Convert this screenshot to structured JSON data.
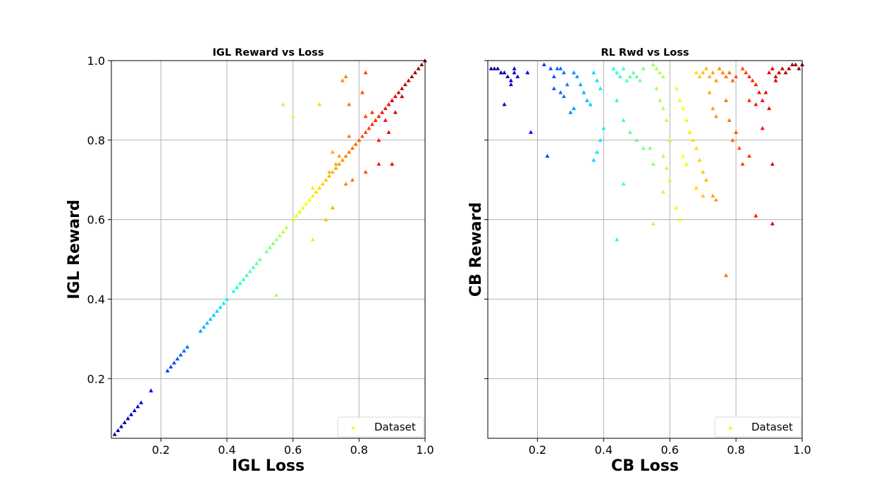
{
  "chart_data": [
    {
      "type": "scatter",
      "title": "IGL Reward vs Loss",
      "xlabel": "IGL Loss",
      "ylabel": "IGL Reward",
      "xlim": [
        0.05,
        1.0
      ],
      "ylim": [
        0.05,
        1.0
      ],
      "xticks": [
        "0.2",
        "0.4",
        "0.6",
        "0.8",
        "1.0"
      ],
      "yticks": [
        "0.2",
        "0.4",
        "0.6",
        "0.8",
        "1.0"
      ],
      "grid": true,
      "marker": "triangle",
      "colormap": "jet",
      "legend": {
        "label": "Dataset",
        "position": "lower-right"
      },
      "series": [
        {
          "name": "Dataset",
          "points": [
            [
              0.06,
              0.06
            ],
            [
              0.07,
              0.07
            ],
            [
              0.08,
              0.08
            ],
            [
              0.09,
              0.09
            ],
            [
              0.1,
              0.1
            ],
            [
              0.11,
              0.11
            ],
            [
              0.12,
              0.12
            ],
            [
              0.13,
              0.13
            ],
            [
              0.14,
              0.14
            ],
            [
              0.17,
              0.17
            ],
            [
              0.22,
              0.22
            ],
            [
              0.23,
              0.23
            ],
            [
              0.24,
              0.24
            ],
            [
              0.25,
              0.25
            ],
            [
              0.26,
              0.26
            ],
            [
              0.27,
              0.27
            ],
            [
              0.28,
              0.28
            ],
            [
              0.32,
              0.32
            ],
            [
              0.33,
              0.33
            ],
            [
              0.34,
              0.34
            ],
            [
              0.35,
              0.35
            ],
            [
              0.36,
              0.36
            ],
            [
              0.37,
              0.37
            ],
            [
              0.38,
              0.38
            ],
            [
              0.39,
              0.39
            ],
            [
              0.4,
              0.4
            ],
            [
              0.42,
              0.42
            ],
            [
              0.43,
              0.43
            ],
            [
              0.44,
              0.44
            ],
            [
              0.45,
              0.45
            ],
            [
              0.46,
              0.46
            ],
            [
              0.47,
              0.47
            ],
            [
              0.48,
              0.48
            ],
            [
              0.49,
              0.49
            ],
            [
              0.5,
              0.5
            ],
            [
              0.52,
              0.52
            ],
            [
              0.53,
              0.53
            ],
            [
              0.54,
              0.54
            ],
            [
              0.55,
              0.55
            ],
            [
              0.56,
              0.56
            ],
            [
              0.57,
              0.57
            ],
            [
              0.58,
              0.58
            ],
            [
              0.55,
              0.41
            ],
            [
              0.54,
              0.54
            ],
            [
              0.6,
              0.6
            ],
            [
              0.61,
              0.61
            ],
            [
              0.62,
              0.62
            ],
            [
              0.63,
              0.63
            ],
            [
              0.64,
              0.64
            ],
            [
              0.65,
              0.65
            ],
            [
              0.66,
              0.66
            ],
            [
              0.67,
              0.67
            ],
            [
              0.68,
              0.68
            ],
            [
              0.69,
              0.69
            ],
            [
              0.7,
              0.7
            ],
            [
              0.71,
              0.71
            ],
            [
              0.72,
              0.72
            ],
            [
              0.73,
              0.73
            ],
            [
              0.74,
              0.74
            ],
            [
              0.75,
              0.75
            ],
            [
              0.76,
              0.76
            ],
            [
              0.77,
              0.77
            ],
            [
              0.78,
              0.78
            ],
            [
              0.79,
              0.79
            ],
            [
              0.8,
              0.8
            ],
            [
              0.81,
              0.81
            ],
            [
              0.82,
              0.82
            ],
            [
              0.83,
              0.83
            ],
            [
              0.84,
              0.84
            ],
            [
              0.85,
              0.85
            ],
            [
              0.86,
              0.86
            ],
            [
              0.87,
              0.87
            ],
            [
              0.88,
              0.88
            ],
            [
              0.89,
              0.89
            ],
            [
              0.9,
              0.9
            ],
            [
              0.91,
              0.91
            ],
            [
              0.92,
              0.92
            ],
            [
              0.93,
              0.93
            ],
            [
              0.94,
              0.94
            ],
            [
              0.95,
              0.95
            ],
            [
              0.96,
              0.96
            ],
            [
              0.97,
              0.97
            ],
            [
              0.98,
              0.98
            ],
            [
              0.99,
              0.99
            ],
            [
              1.0,
              1.0
            ],
            [
              0.57,
              0.89
            ],
            [
              0.6,
              0.86
            ],
            [
              0.68,
              0.89
            ],
            [
              0.76,
              0.96
            ],
            [
              0.77,
              0.89
            ],
            [
              0.82,
              0.97
            ],
            [
              0.75,
              0.95
            ],
            [
              0.81,
              0.92
            ],
            [
              0.82,
              0.86
            ],
            [
              0.66,
              0.55
            ],
            [
              0.7,
              0.6
            ],
            [
              0.72,
              0.63
            ],
            [
              0.66,
              0.68
            ],
            [
              0.71,
              0.72
            ],
            [
              0.73,
              0.74
            ],
            [
              0.76,
              0.69
            ],
            [
              0.78,
              0.7
            ],
            [
              0.82,
              0.72
            ],
            [
              0.86,
              0.74
            ],
            [
              0.9,
              0.74
            ],
            [
              0.74,
              0.76
            ],
            [
              0.77,
              0.81
            ],
            [
              0.86,
              0.8
            ],
            [
              0.88,
              0.85
            ],
            [
              0.89,
              0.82
            ],
            [
              0.84,
              0.87
            ],
            [
              0.91,
              0.87
            ],
            [
              0.93,
              0.91
            ],
            [
              0.9,
              0.9
            ],
            [
              0.62,
              0.62
            ],
            [
              0.67,
              0.67
            ],
            [
              0.72,
              0.77
            ]
          ]
        }
      ]
    },
    {
      "type": "scatter",
      "title": "RL Rwd vs Loss",
      "xlabel": "CB Loss",
      "ylabel": "CB Reward",
      "xlim": [
        0.05,
        1.0
      ],
      "ylim": [
        0.05,
        1.0
      ],
      "xticks": [
        "0.2",
        "0.4",
        "0.6",
        "0.8",
        "1.0"
      ],
      "yticks": [],
      "grid": true,
      "marker": "triangle",
      "colormap": "jet",
      "legend": {
        "label": "Dataset",
        "position": "lower-right"
      },
      "series": [
        {
          "name": "Dataset",
          "points": [
            [
              0.06,
              0.98
            ],
            [
              0.07,
              0.98
            ],
            [
              0.08,
              0.98
            ],
            [
              0.09,
              0.97
            ],
            [
              0.1,
              0.97
            ],
            [
              0.11,
              0.96
            ],
            [
              0.12,
              0.95
            ],
            [
              0.13,
              0.97
            ],
            [
              0.14,
              0.96
            ],
            [
              0.12,
              0.94
            ],
            [
              0.1,
              0.89
            ],
            [
              0.13,
              0.98
            ],
            [
              0.17,
              0.97
            ],
            [
              0.18,
              0.82
            ],
            [
              0.22,
              0.99
            ],
            [
              0.24,
              0.98
            ],
            [
              0.25,
              0.96
            ],
            [
              0.26,
              0.98
            ],
            [
              0.27,
              0.98
            ],
            [
              0.28,
              0.97
            ],
            [
              0.29,
              0.94
            ],
            [
              0.27,
              0.92
            ],
            [
              0.25,
              0.93
            ],
            [
              0.23,
              0.76
            ],
            [
              0.28,
              0.91
            ],
            [
              0.31,
              0.97
            ],
            [
              0.32,
              0.96
            ],
            [
              0.33,
              0.94
            ],
            [
              0.34,
              0.92
            ],
            [
              0.35,
              0.9
            ],
            [
              0.36,
              0.89
            ],
            [
              0.37,
              0.97
            ],
            [
              0.38,
              0.95
            ],
            [
              0.39,
              0.93
            ],
            [
              0.38,
              0.77
            ],
            [
              0.39,
              0.8
            ],
            [
              0.4,
              0.83
            ],
            [
              0.31,
              0.88
            ],
            [
              0.3,
              0.87
            ],
            [
              0.37,
              0.75
            ],
            [
              0.43,
              0.98
            ],
            [
              0.44,
              0.97
            ],
            [
              0.45,
              0.96
            ],
            [
              0.46,
              0.98
            ],
            [
              0.47,
              0.95
            ],
            [
              0.48,
              0.96
            ],
            [
              0.49,
              0.97
            ],
            [
              0.5,
              0.96
            ],
            [
              0.51,
              0.95
            ],
            [
              0.52,
              0.98
            ],
            [
              0.44,
              0.9
            ],
            [
              0.46,
              0.85
            ],
            [
              0.48,
              0.82
            ],
            [
              0.5,
              0.8
            ],
            [
              0.52,
              0.78
            ],
            [
              0.46,
              0.69
            ],
            [
              0.44,
              0.55
            ],
            [
              0.55,
              0.59
            ],
            [
              0.55,
              0.99
            ],
            [
              0.56,
              0.98
            ],
            [
              0.57,
              0.97
            ],
            [
              0.58,
              0.96
            ],
            [
              0.56,
              0.93
            ],
            [
              0.57,
              0.9
            ],
            [
              0.58,
              0.88
            ],
            [
              0.59,
              0.85
            ],
            [
              0.6,
              0.8
            ],
            [
              0.58,
              0.76
            ],
            [
              0.59,
              0.73
            ],
            [
              0.6,
              0.7
            ],
            [
              0.58,
              0.67
            ],
            [
              0.55,
              0.74
            ],
            [
              0.54,
              0.78
            ],
            [
              0.62,
              0.93
            ],
            [
              0.63,
              0.9
            ],
            [
              0.64,
              0.88
            ],
            [
              0.65,
              0.85
            ],
            [
              0.66,
              0.82
            ],
            [
              0.67,
              0.8
            ],
            [
              0.68,
              0.78
            ],
            [
              0.69,
              0.75
            ],
            [
              0.7,
              0.72
            ],
            [
              0.71,
              0.7
            ],
            [
              0.68,
              0.68
            ],
            [
              0.7,
              0.66
            ],
            [
              0.62,
              0.63
            ],
            [
              0.63,
              0.6
            ],
            [
              0.65,
              0.74
            ],
            [
              0.64,
              0.76
            ],
            [
              0.68,
              0.97
            ],
            [
              0.69,
              0.96
            ],
            [
              0.7,
              0.97
            ],
            [
              0.71,
              0.98
            ],
            [
              0.72,
              0.96
            ],
            [
              0.73,
              0.97
            ],
            [
              0.74,
              0.95
            ],
            [
              0.72,
              0.92
            ],
            [
              0.73,
              0.88
            ],
            [
              0.74,
              0.86
            ],
            [
              0.73,
              0.66
            ],
            [
              0.74,
              0.65
            ],
            [
              0.77,
              0.46
            ],
            [
              0.75,
              0.98
            ],
            [
              0.76,
              0.97
            ],
            [
              0.77,
              0.96
            ],
            [
              0.78,
              0.97
            ],
            [
              0.79,
              0.95
            ],
            [
              0.8,
              0.96
            ],
            [
              0.77,
              0.9
            ],
            [
              0.78,
              0.85
            ],
            [
              0.8,
              0.82
            ],
            [
              0.81,
              0.78
            ],
            [
              0.79,
              0.8
            ],
            [
              0.82,
              0.98
            ],
            [
              0.83,
              0.97
            ],
            [
              0.84,
              0.96
            ],
            [
              0.85,
              0.95
            ],
            [
              0.86,
              0.94
            ],
            [
              0.87,
              0.92
            ],
            [
              0.88,
              0.9
            ],
            [
              0.89,
              0.92
            ],
            [
              0.9,
              0.88
            ],
            [
              0.84,
              0.9
            ],
            [
              0.86,
              0.89
            ],
            [
              0.88,
              0.83
            ],
            [
              0.84,
              0.76
            ],
            [
              0.86,
              0.61
            ],
            [
              0.91,
              0.59
            ],
            [
              0.91,
              0.74
            ],
            [
              0.82,
              0.74
            ],
            [
              0.9,
              0.97
            ],
            [
              0.91,
              0.98
            ],
            [
              0.92,
              0.96
            ],
            [
              0.93,
              0.97
            ],
            [
              0.94,
              0.98
            ],
            [
              0.95,
              0.97
            ],
            [
              0.96,
              0.98
            ],
            [
              0.97,
              0.99
            ],
            [
              0.98,
              0.99
            ],
            [
              0.99,
              0.98
            ],
            [
              1.0,
              0.99
            ],
            [
              0.92,
              0.95
            ]
          ]
        }
      ]
    }
  ]
}
